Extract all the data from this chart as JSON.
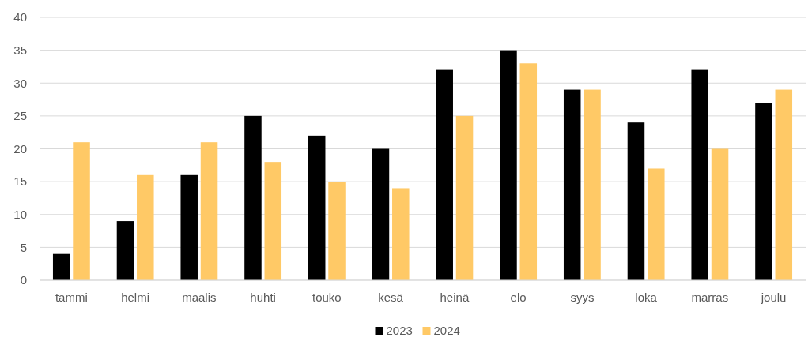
{
  "chart_data": {
    "type": "bar",
    "categories": [
      "tammi",
      "helmi",
      "maalis",
      "huhti",
      "touko",
      "kesä",
      "heinä",
      "elo",
      "syys",
      "loka",
      "marras",
      "joulu"
    ],
    "series": [
      {
        "name": "2023",
        "color": "#000000",
        "values": [
          4,
          9,
          16,
          25,
          22,
          20,
          32,
          35,
          29,
          24,
          32,
          27
        ]
      },
      {
        "name": "2024",
        "color": "#ffc966",
        "values": [
          21,
          16,
          21,
          18,
          15,
          14,
          25,
          33,
          29,
          17,
          20,
          29
        ]
      }
    ],
    "ylim": [
      0,
      40
    ],
    "yticks": [
      0,
      5,
      10,
      15,
      20,
      25,
      30,
      35,
      40
    ],
    "grid": "y",
    "legend": "bottom"
  }
}
